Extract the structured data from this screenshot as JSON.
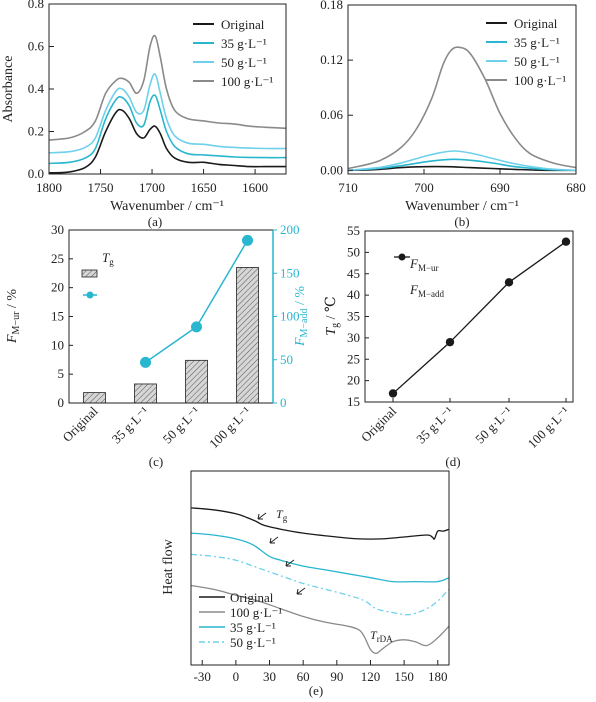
{
  "colors": {
    "black": "#1a1a1a",
    "teal": "#29b6cf",
    "cyan": "#6fd0ec",
    "gray": "#8a8a8a",
    "bar_fill": "#d6d6d6"
  },
  "chart_data": [
    {
      "type": "line",
      "panel_label": "(a)",
      "xlabel": "Wavenumber / cm⁻¹",
      "ylabel": "Absorbance",
      "xlim": [
        1800,
        1570
      ],
      "ylim": [
        0,
        0.8
      ],
      "xticks": [
        1800,
        1750,
        1700,
        1650,
        1600
      ],
      "yticks": [
        0.0,
        0.2,
        0.4,
        0.6,
        0.8
      ],
      "ytick_labels": [
        "0.0",
        "0.2",
        "0.4",
        "0.6",
        "0.8"
      ],
      "legend_position": "top-right",
      "series": [
        {
          "name": "Original",
          "color_key": "black",
          "x": [
            1800,
            1780,
            1765,
            1755,
            1745,
            1735,
            1729,
            1722,
            1715,
            1708,
            1702,
            1697,
            1692,
            1686,
            1678,
            1665,
            1650,
            1635,
            1620,
            1605,
            1590,
            1570
          ],
          "y": [
            0.005,
            0.01,
            0.03,
            0.08,
            0.2,
            0.29,
            0.3,
            0.26,
            0.19,
            0.17,
            0.21,
            0.225,
            0.19,
            0.12,
            0.075,
            0.055,
            0.055,
            0.045,
            0.04,
            0.035,
            0.035,
            0.035
          ]
        },
        {
          "name": "35 g·L⁻¹",
          "color_key": "teal",
          "x": [
            1800,
            1780,
            1765,
            1755,
            1745,
            1735,
            1729,
            1722,
            1715,
            1708,
            1702,
            1697,
            1692,
            1686,
            1678,
            1665,
            1650,
            1635,
            1620,
            1605,
            1590,
            1570
          ],
          "y": [
            0.05,
            0.055,
            0.075,
            0.12,
            0.26,
            0.35,
            0.36,
            0.32,
            0.24,
            0.23,
            0.34,
            0.37,
            0.3,
            0.2,
            0.13,
            0.095,
            0.09,
            0.085,
            0.08,
            0.078,
            0.077,
            0.077
          ]
        },
        {
          "name": "50 g·L⁻¹",
          "color_key": "cyan",
          "x": [
            1800,
            1780,
            1765,
            1755,
            1745,
            1735,
            1729,
            1722,
            1715,
            1708,
            1702,
            1697,
            1692,
            1686,
            1678,
            1665,
            1650,
            1635,
            1620,
            1605,
            1590,
            1570
          ],
          "y": [
            0.1,
            0.105,
            0.125,
            0.17,
            0.3,
            0.39,
            0.4,
            0.36,
            0.29,
            0.3,
            0.42,
            0.47,
            0.38,
            0.26,
            0.18,
            0.145,
            0.14,
            0.13,
            0.125,
            0.122,
            0.12,
            0.12
          ]
        },
        {
          "name": "100 g·L⁻¹",
          "color_key": "gray",
          "x": [
            1800,
            1780,
            1765,
            1755,
            1745,
            1735,
            1729,
            1722,
            1715,
            1708,
            1702,
            1697,
            1692,
            1686,
            1678,
            1665,
            1650,
            1635,
            1620,
            1605,
            1590,
            1570
          ],
          "y": [
            0.16,
            0.17,
            0.2,
            0.25,
            0.38,
            0.44,
            0.45,
            0.43,
            0.38,
            0.44,
            0.6,
            0.65,
            0.55,
            0.4,
            0.3,
            0.26,
            0.25,
            0.24,
            0.235,
            0.225,
            0.22,
            0.215
          ]
        }
      ]
    },
    {
      "type": "line",
      "panel_label": "(b)",
      "xlabel": "Wavenumber / cm⁻¹",
      "ylabel": "",
      "xlim": [
        710,
        680
      ],
      "ylim": [
        -0.004,
        0.18
      ],
      "xticks": [
        710,
        700,
        690,
        680
      ],
      "yticks": [
        0.0,
        0.06,
        0.12,
        0.18
      ],
      "ytick_labels": [
        "0.00",
        "0.06",
        "0.12",
        "0.18"
      ],
      "legend_position": "top-right",
      "series": [
        {
          "name": "Original",
          "color_key": "black",
          "x": [
            710,
            706,
            703,
            700,
            697,
            694,
            691,
            688,
            684,
            680
          ],
          "y": [
            0.0,
            0.001,
            0.003,
            0.004,
            0.004,
            0.003,
            0.002,
            0.001,
            0.0,
            0.0
          ]
        },
        {
          "name": "35 g·L⁻¹",
          "color_key": "teal",
          "x": [
            710,
            706,
            703,
            700,
            698,
            696,
            694,
            691,
            688,
            684,
            680
          ],
          "y": [
            0.0,
            0.002,
            0.005,
            0.009,
            0.011,
            0.012,
            0.011,
            0.008,
            0.004,
            0.001,
            0.0
          ]
        },
        {
          "name": "50 g·L⁻¹",
          "color_key": "cyan",
          "x": [
            710,
            706,
            703,
            700,
            698,
            696,
            694,
            691,
            688,
            684,
            680
          ],
          "y": [
            0.0,
            0.003,
            0.008,
            0.015,
            0.019,
            0.021,
            0.019,
            0.013,
            0.007,
            0.002,
            0.0
          ]
        },
        {
          "name": "100 g·L⁻¹",
          "color_key": "gray",
          "x": [
            710,
            706,
            703,
            701,
            699,
            697.5,
            696.5,
            695.5,
            694,
            692,
            690,
            688,
            686,
            683,
            680
          ],
          "y": [
            0.002,
            0.01,
            0.025,
            0.045,
            0.078,
            0.115,
            0.13,
            0.134,
            0.128,
            0.1,
            0.062,
            0.035,
            0.018,
            0.008,
            0.003
          ]
        }
      ]
    },
    {
      "type": "bar",
      "panel_label": "(c)",
      "categories": [
        "Original",
        "35 g·L⁻¹",
        "50 g·L⁻¹",
        "100 g·L⁻¹"
      ],
      "ylabel": "F_M−ur / %",
      "y2label": "F_M−add / %",
      "ylim": [
        0,
        30
      ],
      "y2lim": [
        0,
        200
      ],
      "yticks": [
        0,
        5,
        10,
        15,
        20,
        25,
        30
      ],
      "y2ticks": [
        0,
        50,
        100,
        150,
        200
      ],
      "legend_text": "T_g",
      "series": [
        {
          "name": "F_M−ur",
          "kind": "bar",
          "axis": "left",
          "values": [
            1.8,
            3.3,
            7.4,
            23.5
          ]
        },
        {
          "name": "F_M−add",
          "kind": "line",
          "axis": "right",
          "values": [
            null,
            47,
            88,
            188
          ]
        }
      ]
    },
    {
      "type": "line",
      "panel_label": "(d)",
      "categories": [
        "Original",
        "35 g·L⁻¹",
        "50 g·L⁻¹",
        "100 g·L⁻¹"
      ],
      "ylabel": "T_g / ℃",
      "ylim": [
        15,
        55
      ],
      "yticks": [
        15,
        20,
        25,
        30,
        35,
        40,
        45,
        50,
        55
      ],
      "legend_text_1": "F_M−ur",
      "legend_text_2": "F_M−add",
      "series": [
        {
          "name": "T_g",
          "values": [
            17,
            29,
            43,
            52.5
          ]
        }
      ]
    },
    {
      "type": "line",
      "panel_label": "(e)",
      "ylabel": "Heat flow",
      "xlim": [
        -40,
        190
      ],
      "xticks": [
        -30,
        0,
        30,
        60,
        90,
        120,
        150,
        180
      ],
      "annotations": [
        "T_g",
        "T_rDA"
      ],
      "legend_position": "bottom-left",
      "series": [
        {
          "name": "Original",
          "color_key": "black",
          "style": "solid",
          "x": [
            -40,
            -20,
            0,
            10,
            18,
            25,
            40,
            60,
            90,
            110,
            130,
            150,
            170,
            175,
            177,
            180,
            185,
            190
          ],
          "y": [
            0.81,
            0.8,
            0.78,
            0.76,
            0.74,
            0.72,
            0.7,
            0.68,
            0.66,
            0.65,
            0.65,
            0.66,
            0.67,
            0.66,
            0.65,
            0.69,
            0.69,
            0.7
          ]
        },
        {
          "name": "100 g·L⁻¹",
          "color_key": "gray",
          "style": "solid",
          "x": [
            -40,
            -20,
            0,
            20,
            40,
            60,
            80,
            100,
            110,
            115,
            120,
            125,
            130,
            140,
            150,
            160,
            170,
            180,
            190
          ],
          "y": [
            0.41,
            0.39,
            0.36,
            0.33,
            0.29,
            0.25,
            0.22,
            0.2,
            0.18,
            0.14,
            0.08,
            0.06,
            0.08,
            0.12,
            0.13,
            0.12,
            0.1,
            0.14,
            0.2
          ]
        },
        {
          "name": "35 g·L⁻¹",
          "color_key": "teal",
          "style": "solid",
          "x": [
            -40,
            -20,
            0,
            15,
            30,
            40,
            60,
            80,
            100,
            120,
            140,
            160,
            180,
            190
          ],
          "y": [
            0.68,
            0.67,
            0.65,
            0.62,
            0.56,
            0.54,
            0.51,
            0.49,
            0.47,
            0.45,
            0.43,
            0.43,
            0.43,
            0.45
          ]
        },
        {
          "name": "50 g·L⁻¹",
          "color_key": "cyan",
          "style": "dashed",
          "x": [
            -40,
            -20,
            0,
            20,
            40,
            60,
            80,
            100,
            115,
            125,
            140,
            155,
            170,
            180,
            190
          ],
          "y": [
            0.57,
            0.56,
            0.54,
            0.5,
            0.46,
            0.42,
            0.39,
            0.36,
            0.33,
            0.29,
            0.27,
            0.26,
            0.29,
            0.33,
            0.39
          ]
        }
      ]
    }
  ]
}
